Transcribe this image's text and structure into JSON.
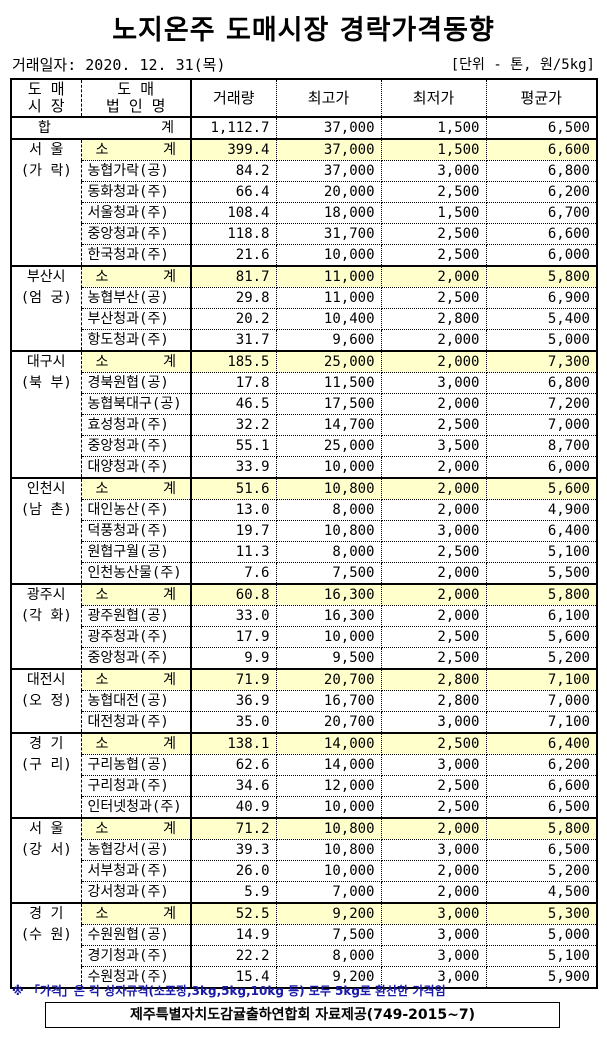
{
  "title": "노지온주 도매시장 경락가격동향",
  "trade_date": "거래일자: 2020. 12. 31(목)",
  "unit": "[단위 - 톤, 원/5kg]",
  "headers": {
    "market": [
      "도 매",
      "시 장"
    ],
    "corp": [
      "도 매",
      "법 인 명"
    ],
    "volume": "거래량",
    "max": "최고가",
    "min": "최저가",
    "avg": "평균가"
  },
  "total": {
    "label_left": "합",
    "label_right": "계",
    "volume": "1,112.7",
    "max": "37,000",
    "min": "1,500",
    "avg": "6,500"
  },
  "subtotal_label": [
    "소",
    "계"
  ],
  "subtotal_color": "#ffffcc",
  "groups": [
    {
      "market": [
        "서 울",
        "(가 락)"
      ],
      "subtotal": [
        "399.4",
        "37,000",
        "1,500",
        "6,600"
      ],
      "rows": [
        [
          "농협가락(공)",
          "84.2",
          "37,000",
          "3,000",
          "6,800"
        ],
        [
          "동화청과(주)",
          "66.4",
          "20,000",
          "2,500",
          "6,200"
        ],
        [
          "서울청과(주)",
          "108.4",
          "18,000",
          "1,500",
          "6,700"
        ],
        [
          "중앙청과(주)",
          "118.8",
          "31,700",
          "2,500",
          "6,600"
        ],
        [
          "한국청과(주)",
          "21.6",
          "10,000",
          "2,500",
          "6,000"
        ]
      ]
    },
    {
      "market": [
        "부산시",
        "(엄 궁)"
      ],
      "subtotal": [
        "81.7",
        "11,000",
        "2,000",
        "5,800"
      ],
      "rows": [
        [
          "농협부산(공)",
          "29.8",
          "11,000",
          "2,500",
          "6,900"
        ],
        [
          "부산청과(주)",
          "20.2",
          "10,400",
          "2,800",
          "5,400"
        ],
        [
          "항도청과(주)",
          "31.7",
          "9,600",
          "2,000",
          "5,000"
        ]
      ]
    },
    {
      "market": [
        "대구시",
        "(북 부)"
      ],
      "subtotal": [
        "185.5",
        "25,000",
        "2,000",
        "7,300"
      ],
      "rows": [
        [
          "경북원협(공)",
          "17.8",
          "11,500",
          "3,000",
          "6,800"
        ],
        [
          "농협북대구(공)",
          "46.5",
          "17,500",
          "2,000",
          "7,200"
        ],
        [
          "효성청과(주)",
          "32.2",
          "14,700",
          "2,500",
          "7,000"
        ],
        [
          "중앙청과(주)",
          "55.1",
          "25,000",
          "3,500",
          "8,700"
        ],
        [
          "대양청과(주)",
          "33.9",
          "10,000",
          "2,000",
          "6,000"
        ]
      ]
    },
    {
      "market": [
        "인천시",
        "(남 촌)"
      ],
      "subtotal": [
        "51.6",
        "10,800",
        "2,000",
        "5,600"
      ],
      "rows": [
        [
          "대인농산(주)",
          "13.0",
          "8,000",
          "2,000",
          "4,900"
        ],
        [
          "덕풍청과(주)",
          "19.7",
          "10,800",
          "3,000",
          "6,400"
        ],
        [
          "원협구월(공)",
          "11.3",
          "8,000",
          "2,500",
          "5,100"
        ],
        [
          "인천농산물(주)",
          "7.6",
          "7,500",
          "2,000",
          "5,500"
        ]
      ]
    },
    {
      "market": [
        "광주시",
        "(각 화)"
      ],
      "subtotal": [
        "60.8",
        "16,300",
        "2,000",
        "5,800"
      ],
      "rows": [
        [
          "광주원협(공)",
          "33.0",
          "16,300",
          "2,000",
          "6,100"
        ],
        [
          "광주청과(주)",
          "17.9",
          "10,000",
          "2,500",
          "5,600"
        ],
        [
          "중앙청과(주)",
          "9.9",
          "9,500",
          "2,500",
          "5,200"
        ]
      ]
    },
    {
      "market": [
        "대전시",
        "(오 정)"
      ],
      "subtotal": [
        "71.9",
        "20,700",
        "2,800",
        "7,100"
      ],
      "rows": [
        [
          "농협대전(공)",
          "36.9",
          "16,700",
          "2,800",
          "7,000"
        ],
        [
          "대전청과(주)",
          "35.0",
          "20,700",
          "3,000",
          "7,100"
        ]
      ]
    },
    {
      "market": [
        "경 기",
        "(구 리)"
      ],
      "subtotal": [
        "138.1",
        "14,000",
        "2,500",
        "6,400"
      ],
      "rows": [
        [
          "구리농협(공)",
          "62.6",
          "14,000",
          "3,000",
          "6,200"
        ],
        [
          "구리청과(주)",
          "34.6",
          "12,000",
          "2,500",
          "6,600"
        ],
        [
          "인터넷청과(주)",
          "40.9",
          "10,000",
          "2,500",
          "6,500"
        ]
      ]
    },
    {
      "market": [
        "서 울",
        "(강 서)"
      ],
      "subtotal": [
        "71.2",
        "10,800",
        "2,000",
        "5,800"
      ],
      "rows": [
        [
          "농협강서(공)",
          "39.3",
          "10,800",
          "3,000",
          "6,500"
        ],
        [
          "서부청과(주)",
          "26.0",
          "10,000",
          "2,000",
          "5,200"
        ],
        [
          "강서청과(주)",
          "5.9",
          "7,000",
          "2,000",
          "4,500"
        ]
      ]
    },
    {
      "market": [
        "경 기",
        "(수 원)"
      ],
      "subtotal": [
        "52.5",
        "9,200",
        "3,000",
        "5,300"
      ],
      "rows": [
        [
          "수원원협(공)",
          "14.9",
          "7,500",
          "3,000",
          "5,000"
        ],
        [
          "경기청과(주)",
          "22.2",
          "8,000",
          "3,000",
          "5,100"
        ],
        [
          "수원청과(주)",
          "15.4",
          "9,200",
          "3,000",
          "5,900"
        ]
      ]
    }
  ],
  "note": "※ 「가격」은 각 상자규격(소포장,3kg,5kg,10kg 등) 모두 5kg로 환산한 가격임",
  "source": "제주특별자치도감귤출하연합회 자료제공(749-2015~7)"
}
